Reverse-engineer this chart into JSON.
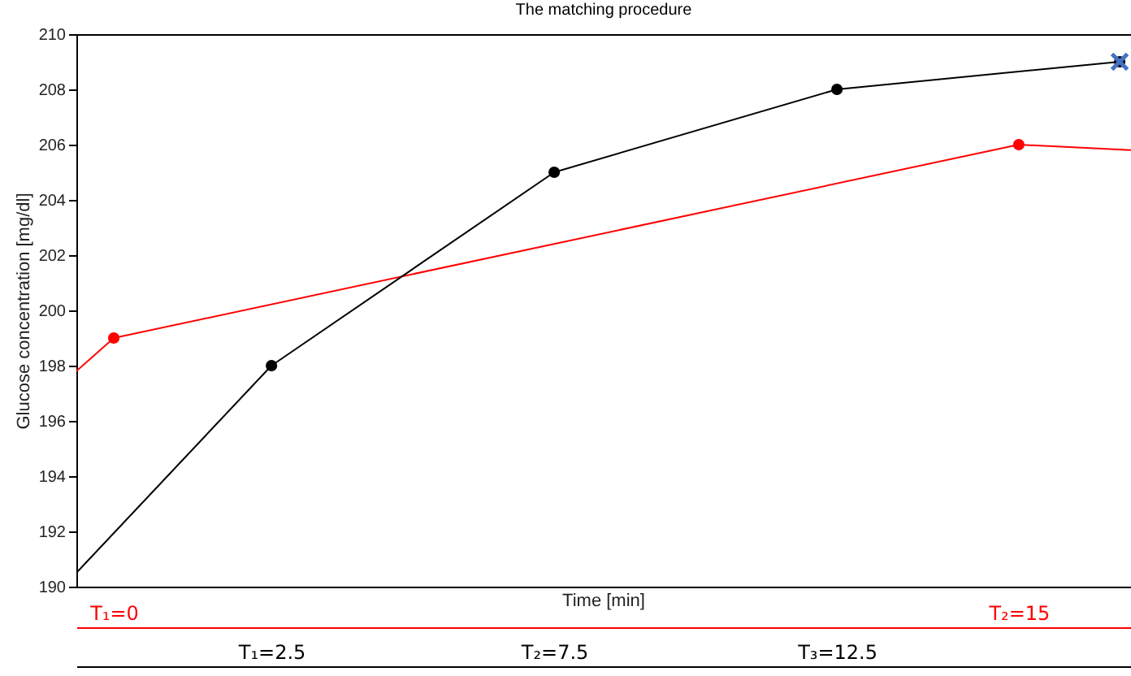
{
  "chart_data": {
    "type": "line",
    "title": "The matching procedure",
    "xlabel": "Time [min]",
    "ylabel": "Glucose concentration [mg/dl]",
    "xlim": [
      -0.95,
      17.7
    ],
    "xticks": [
      {
        "value": 2.5,
        "label": "T₁=2.5"
      },
      {
        "value": 7.5,
        "label": "T₂=7.5"
      },
      {
        "value": 12.5,
        "label": "T₃=12.5"
      }
    ],
    "x2lim": [
      -0.62,
      16.86
    ],
    "x2ticks": [
      {
        "value": 0,
        "label": "T₁=0"
      },
      {
        "value": 15,
        "label": "T₂=15"
      }
    ],
    "ylim": [
      190,
      210
    ],
    "yticks": [
      190,
      192,
      194,
      196,
      198,
      200,
      202,
      204,
      206,
      208,
      210
    ],
    "grid": false,
    "series": [
      {
        "type": "line",
        "color": "#ff0000",
        "axis": "x2",
        "x": [
          -0.62,
          0,
          15,
          16.86
        ],
        "values": [
          197.8,
          199,
          206,
          205.8
        ],
        "marker": "none"
      },
      {
        "type": "line",
        "color": "#000000",
        "x": [
          -0.95,
          2.5,
          7.5,
          12.5,
          17.5
        ],
        "values": [
          190.5,
          198,
          205,
          208,
          209
        ],
        "marker": "none"
      },
      {
        "type": "scatter",
        "color": "#ff0000",
        "axis": "x2",
        "x": [
          0,
          15
        ],
        "values": [
          199,
          206
        ],
        "marker": "circle"
      },
      {
        "type": "scatter",
        "color": "#000000",
        "x": [
          2.5,
          7.5,
          12.5,
          17.5
        ],
        "values": [
          198,
          205,
          208,
          209
        ],
        "marker": "circle"
      },
      {
        "type": "scatter",
        "color": "#4472c4",
        "x": [
          17.5
        ],
        "values": [
          209
        ],
        "marker": "cross"
      }
    ]
  }
}
